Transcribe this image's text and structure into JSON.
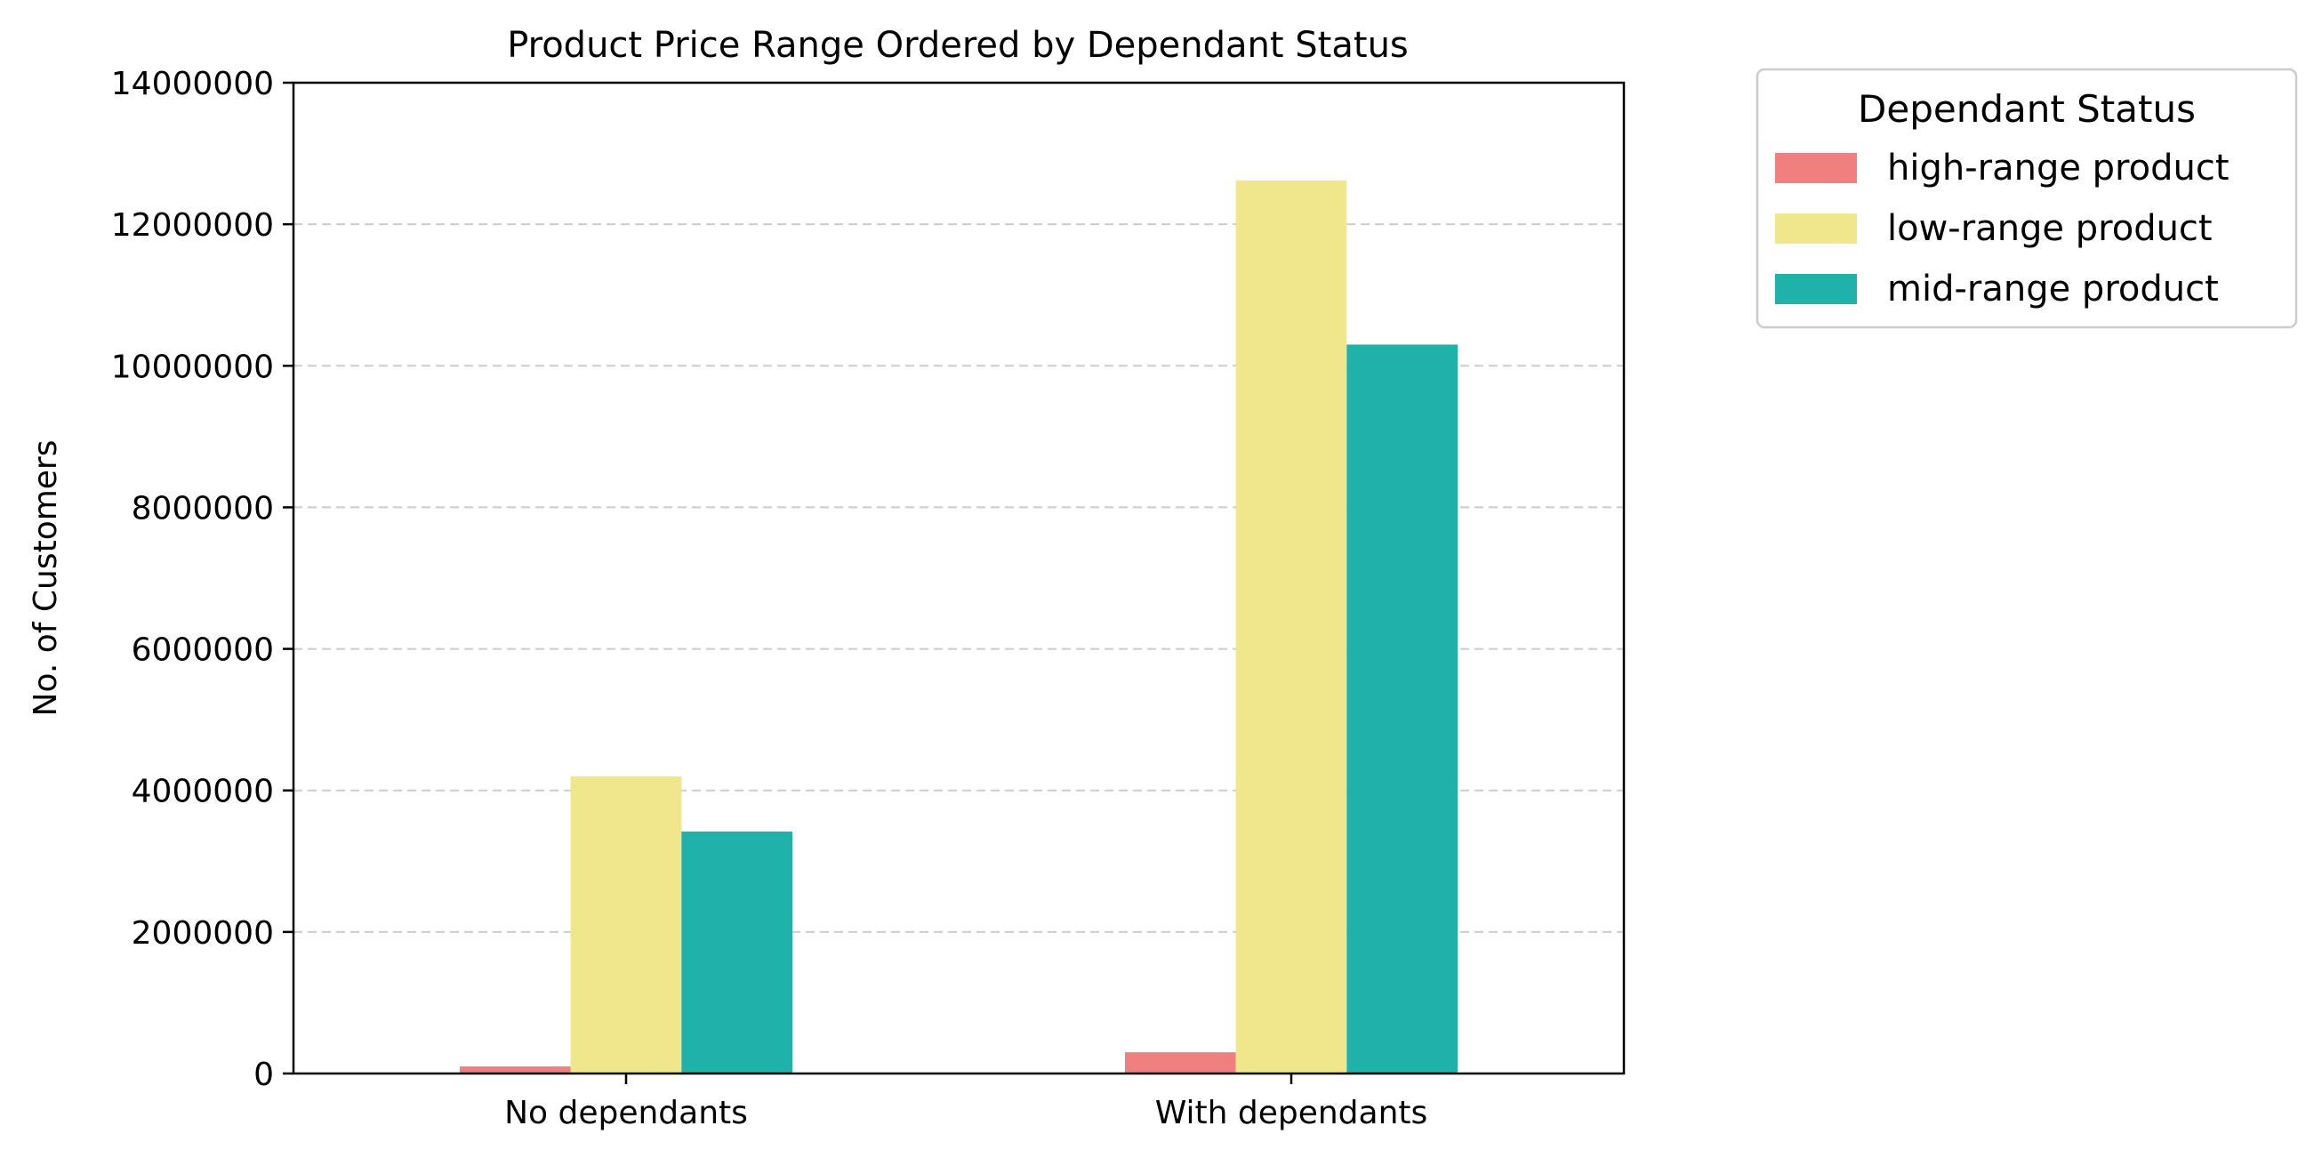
{
  "chart_data": {
    "type": "bar",
    "title": "Product Price Range Ordered by Dependant Status",
    "xlabel": "",
    "ylabel": "No. of Customers",
    "categories": [
      "No dependants",
      "With dependants"
    ],
    "series": [
      {
        "name": "high-range product",
        "color": "#f08080",
        "values": [
          100000,
          300000
        ]
      },
      {
        "name": "low-range product",
        "color": "#f0e68c",
        "values": [
          4200000,
          12620000
        ]
      },
      {
        "name": "mid-range product",
        "color": "#20b2aa",
        "values": [
          3420000,
          10300000
        ]
      }
    ],
    "ylim": [
      0,
      14000000
    ],
    "yticks": [
      0,
      2000000,
      4000000,
      6000000,
      8000000,
      10000000,
      12000000,
      14000000
    ],
    "ytick_labels": [
      "0",
      "2000000",
      "4000000",
      "6000000",
      "8000000",
      "10000000",
      "12000000",
      "14000000"
    ],
    "grid": "y-dashed",
    "legend": {
      "title": "Dependant Status",
      "placement": "outside-top-right"
    }
  }
}
